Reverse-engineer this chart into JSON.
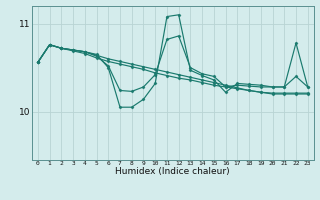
{
  "xlabel": "Humidex (Indice chaleur)",
  "bg_color": "#d4ecec",
  "line_color": "#1a7a6e",
  "grid_color": "#b8d4d4",
  "x_ticks": [
    0,
    1,
    2,
    3,
    4,
    5,
    6,
    7,
    8,
    9,
    10,
    11,
    12,
    13,
    14,
    15,
    16,
    17,
    18,
    19,
    20,
    21,
    22,
    23
  ],
  "y_ticks": [
    10,
    11
  ],
  "ylim": [
    9.45,
    11.2
  ],
  "xlim": [
    -0.5,
    23.5
  ],
  "series": [
    [
      10.56,
      10.76,
      10.72,
      10.7,
      10.68,
      10.64,
      10.6,
      10.57,
      10.54,
      10.51,
      10.48,
      10.45,
      10.42,
      10.39,
      10.36,
      10.33,
      10.3,
      10.27,
      10.24,
      10.22,
      10.21,
      10.21,
      10.21,
      10.21
    ],
    [
      10.56,
      10.76,
      10.72,
      10.7,
      10.68,
      10.63,
      10.52,
      10.24,
      10.23,
      10.28,
      10.42,
      10.82,
      10.86,
      10.5,
      10.43,
      10.4,
      10.28,
      10.3,
      10.29,
      10.28,
      10.28,
      10.28,
      10.4,
      10.28
    ],
    [
      10.56,
      10.76,
      10.72,
      10.7,
      10.68,
      10.65,
      10.5,
      10.05,
      10.05,
      10.14,
      10.32,
      11.08,
      11.1,
      10.47,
      10.41,
      10.36,
      10.22,
      10.32,
      10.31,
      10.3,
      10.28,
      10.28,
      10.78,
      10.28
    ],
    [
      10.56,
      10.76,
      10.72,
      10.69,
      10.66,
      10.61,
      10.57,
      10.54,
      10.51,
      10.48,
      10.44,
      10.41,
      10.38,
      10.36,
      10.33,
      10.3,
      10.28,
      10.26,
      10.24,
      10.22,
      10.2,
      10.2,
      10.2,
      10.2
    ]
  ]
}
